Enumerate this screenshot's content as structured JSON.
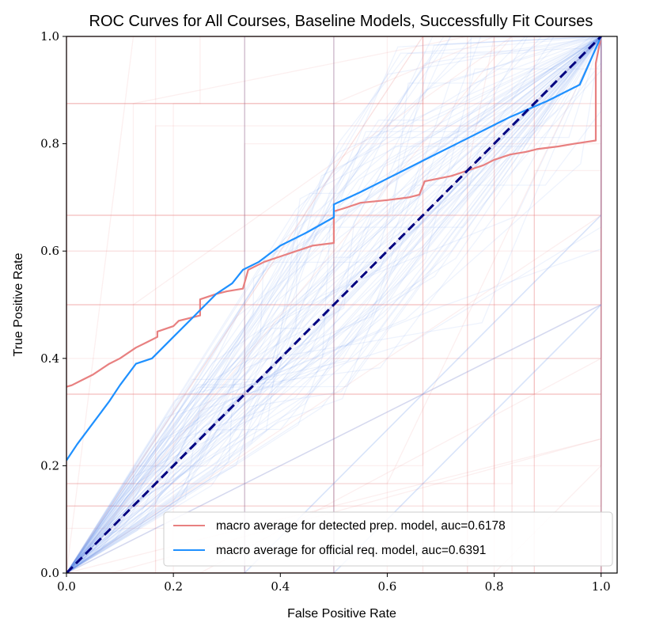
{
  "chart_data": {
    "type": "line",
    "title": "ROC Curves for All Courses, Baseline Models, Successfully Fit Courses",
    "xlabel": "False Positive Rate",
    "ylabel": "True Positive Rate",
    "xlim": [
      0.0,
      1.03
    ],
    "ylim": [
      0.0,
      1.0
    ],
    "xticks": [
      0.0,
      0.2,
      0.4,
      0.6,
      0.8,
      1.0
    ],
    "yticks": [
      0.0,
      0.2,
      0.4,
      0.6,
      0.8,
      1.0
    ],
    "xtick_labels": [
      "0.0",
      "0.2",
      "0.4",
      "0.6",
      "0.8",
      "1.0"
    ],
    "ytick_labels": [
      "0.0",
      "0.2",
      "0.4",
      "0.6",
      "0.8",
      "1.0"
    ],
    "grid": false,
    "legend_position": "lower-right",
    "colors": {
      "detected": "#e88080",
      "official": "#1e90ff",
      "chance": "#000080",
      "background_detected": "#e88080",
      "background_official": "#6495ed"
    },
    "series": [
      {
        "name": "macro average for detected prep. model, auc=0.6178",
        "color": "#e88080",
        "x": [
          0.0,
          0.01,
          0.03,
          0.05,
          0.08,
          0.1,
          0.13,
          0.15,
          0.17,
          0.17,
          0.2,
          0.21,
          0.25,
          0.25,
          0.28,
          0.3,
          0.33,
          0.34,
          0.37,
          0.4,
          0.43,
          0.46,
          0.5,
          0.5,
          0.52,
          0.55,
          0.6,
          0.64,
          0.66,
          0.67,
          0.72,
          0.75,
          0.78,
          0.8,
          0.83,
          0.86,
          0.88,
          0.92,
          0.95,
          0.99,
          0.99,
          1.0
        ],
        "y": [
          0.347,
          0.35,
          0.36,
          0.37,
          0.39,
          0.4,
          0.42,
          0.43,
          0.44,
          0.45,
          0.46,
          0.47,
          0.48,
          0.51,
          0.52,
          0.525,
          0.53,
          0.565,
          0.58,
          0.59,
          0.6,
          0.61,
          0.615,
          0.674,
          0.68,
          0.69,
          0.695,
          0.7,
          0.705,
          0.73,
          0.74,
          0.75,
          0.76,
          0.77,
          0.78,
          0.785,
          0.79,
          0.795,
          0.8,
          0.806,
          0.95,
          1.0
        ]
      },
      {
        "name": "macro average for official req. model, auc=0.6391",
        "color": "#1e90ff",
        "x": [
          0.0,
          0.02,
          0.05,
          0.08,
          0.1,
          0.13,
          0.16,
          0.2,
          0.24,
          0.28,
          0.31,
          0.33,
          0.36,
          0.4,
          0.45,
          0.5,
          0.5,
          0.55,
          0.6,
          0.67,
          0.75,
          0.83,
          0.9,
          0.96,
          1.0
        ],
        "y": [
          0.21,
          0.24,
          0.28,
          0.32,
          0.35,
          0.39,
          0.4,
          0.44,
          0.48,
          0.52,
          0.54,
          0.565,
          0.58,
          0.61,
          0.635,
          0.663,
          0.687,
          0.71,
          0.735,
          0.77,
          0.81,
          0.85,
          0.88,
          0.91,
          1.0
        ]
      },
      {
        "name": "",
        "color": "#000080",
        "dashed": true,
        "x": [
          0.0,
          1.0
        ],
        "y": [
          0.0,
          1.0
        ]
      }
    ]
  }
}
